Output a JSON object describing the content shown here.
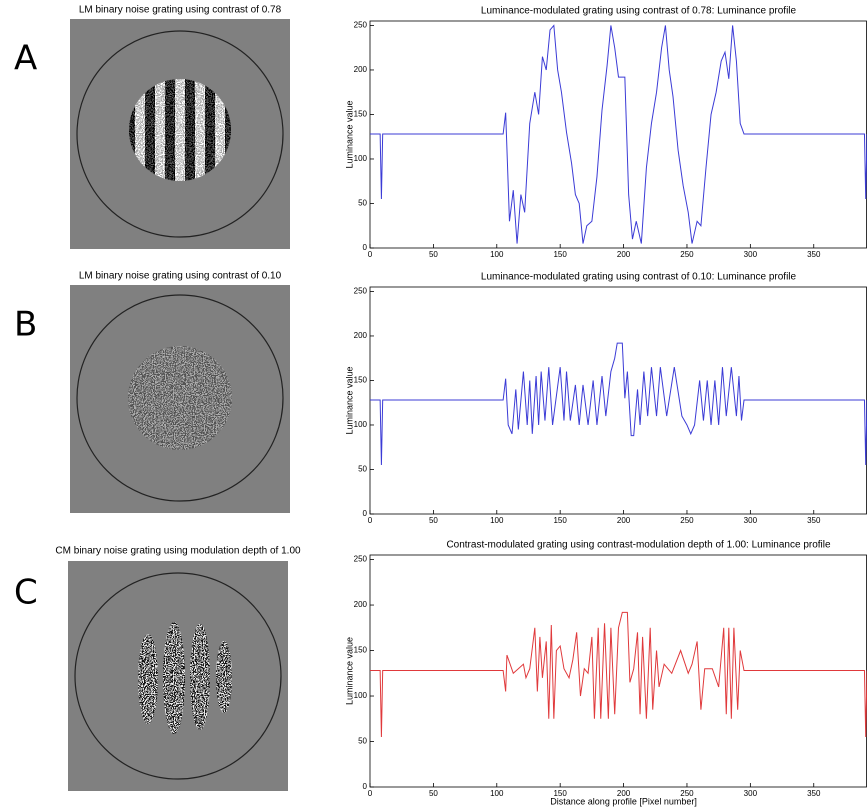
{
  "panel_labels": [
    "A",
    "B",
    "C"
  ],
  "image_titles": [
    "LM binary noise grating using contrast of 0.78",
    "LM binary noise grating using contrast of 0.10",
    "CM binary noise grating using modulation depth of 1.00"
  ],
  "chart_data": [
    {
      "type": "line",
      "title": "Luminance-modulated grating using contrast of 0.78: Luminance profile",
      "ylabel": "Luminance value",
      "xlim": [
        0,
        392
      ],
      "ylim": [
        0,
        255
      ],
      "xticks": [
        0,
        50,
        100,
        150,
        200,
        250,
        300,
        350
      ],
      "yticks": [
        0,
        50,
        100,
        150,
        200,
        250
      ],
      "x": [
        0,
        8,
        9,
        10,
        105,
        107,
        110,
        113,
        116,
        119,
        122,
        126,
        130,
        133,
        136,
        139,
        142,
        145,
        148,
        151,
        155,
        159,
        162,
        165,
        168,
        171,
        175,
        179,
        183,
        187,
        190,
        193,
        196,
        201,
        204,
        207,
        210,
        214,
        218,
        222,
        226,
        230,
        233,
        236,
        239,
        243,
        247,
        251,
        254,
        258,
        261,
        265,
        269,
        273,
        277,
        280,
        283,
        286,
        289,
        292,
        295,
        390,
        391,
        392
      ],
      "series": [
        {
          "color": "#3b3bd6",
          "values": [
            128,
            128,
            55,
            128,
            128,
            152,
            30,
            65,
            5,
            60,
            40,
            140,
            175,
            150,
            215,
            200,
            245,
            250,
            200,
            175,
            130,
            95,
            60,
            50,
            5,
            25,
            30,
            80,
            155,
            205,
            250,
            225,
            192,
            192,
            60,
            10,
            30,
            5,
            90,
            140,
            175,
            225,
            250,
            200,
            170,
            110,
            70,
            40,
            5,
            30,
            25,
            90,
            150,
            175,
            210,
            220,
            190,
            250,
            210,
            140,
            128,
            128,
            55,
            128
          ]
        }
      ]
    },
    {
      "type": "line",
      "title": "Luminance-modulated grating using contrast of 0.10: Luminance profile",
      "ylabel": "Luminance value",
      "xlim": [
        0,
        392
      ],
      "ylim": [
        0,
        255
      ],
      "xticks": [
        0,
        50,
        100,
        150,
        200,
        250,
        300,
        350
      ],
      "yticks": [
        0,
        50,
        100,
        150,
        200,
        250
      ],
      "x": [
        0,
        8,
        9,
        10,
        105,
        107,
        109,
        112,
        115,
        117,
        121,
        124,
        126,
        128,
        131,
        133,
        135,
        138,
        141,
        144,
        150,
        153,
        155,
        158,
        162,
        165,
        168,
        172,
        176,
        179,
        183,
        186,
        190,
        193,
        195,
        199,
        201,
        203,
        206,
        208,
        211,
        213,
        216,
        219,
        222,
        226,
        229,
        234,
        240,
        246,
        250,
        253,
        256,
        260,
        263,
        266,
        269,
        272,
        275,
        278,
        281,
        285,
        289,
        291,
        293,
        295,
        390,
        391,
        392
      ],
      "series": [
        {
          "color": "#3b3bd6",
          "values": [
            128,
            128,
            55,
            128,
            128,
            152,
            100,
            90,
            140,
            95,
            160,
            100,
            150,
            90,
            155,
            100,
            160,
            105,
            165,
            100,
            165,
            105,
            160,
            105,
            145,
            100,
            145,
            100,
            150,
            100,
            155,
            110,
            160,
            175,
            192,
            192,
            130,
            160,
            88,
            88,
            140,
            100,
            160,
            110,
            165,
            110,
            165,
            110,
            165,
            110,
            100,
            90,
            100,
            150,
            105,
            150,
            100,
            150,
            100,
            165,
            110,
            165,
            110,
            155,
            105,
            128,
            128,
            55,
            128
          ]
        }
      ]
    },
    {
      "type": "line",
      "title": "Contrast-modulated grating using contrast-modulation depth of 1.00: Luminance profile",
      "ylabel": "Luminance value",
      "xlabel": "Distance along profile [Pixel number]",
      "xlim": [
        0,
        392
      ],
      "ylim": [
        0,
        255
      ],
      "xticks": [
        0,
        50,
        100,
        150,
        200,
        250,
        300,
        350
      ],
      "yticks": [
        0,
        50,
        100,
        150,
        200,
        250
      ],
      "x": [
        0,
        8,
        9,
        10,
        105,
        107,
        108,
        113,
        117,
        121,
        123,
        126,
        130,
        132,
        134,
        136,
        139,
        141,
        143,
        145,
        147,
        150,
        153,
        157,
        160,
        163,
        166,
        169,
        172,
        175,
        177,
        180,
        182,
        185,
        188,
        190,
        193,
        196,
        199,
        203,
        205,
        208,
        211,
        213,
        215,
        218,
        221,
        223,
        226,
        228,
        232,
        238,
        245,
        251,
        254,
        258,
        261,
        264,
        270,
        275,
        279,
        281,
        283,
        285,
        287,
        290,
        292,
        295,
        390,
        391,
        392
      ],
      "series": [
        {
          "color": "#e0393b",
          "values": [
            128,
            128,
            55,
            128,
            128,
            105,
            145,
            125,
            130,
            135,
            120,
            130,
            175,
            105,
            165,
            120,
            160,
            75,
            178,
            75,
            150,
            155,
            130,
            120,
            140,
            170,
            100,
            130,
            125,
            165,
            75,
            175,
            75,
            180,
            75,
            175,
            80,
            175,
            192,
            192,
            115,
            130,
            170,
            80,
            165,
            75,
            175,
            85,
            150,
            110,
            135,
            125,
            150,
            125,
            135,
            160,
            85,
            130,
            130,
            110,
            175,
            80,
            175,
            75,
            175,
            85,
            150,
            128,
            128,
            55,
            128
          ]
        }
      ]
    }
  ]
}
